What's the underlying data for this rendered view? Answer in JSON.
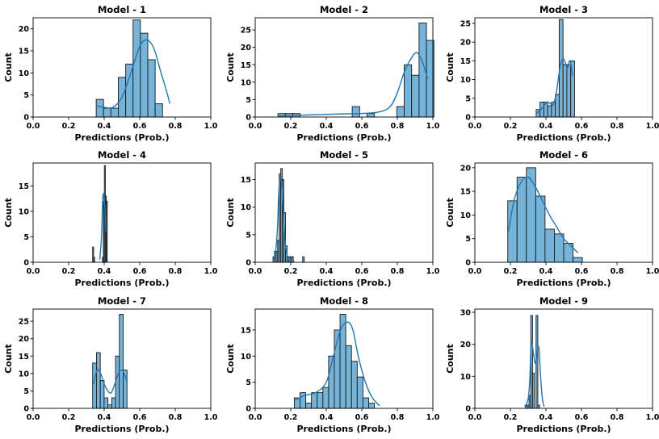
{
  "chart_data": [
    {
      "type": "bar",
      "title": "Model - 1",
      "xlabel": "Predictions (Prob.)",
      "ylabel": "Count",
      "xlim": [
        0,
        1
      ],
      "ylim": [
        0,
        22.5
      ],
      "x_ticks": [
        "0.0",
        "0.2",
        "0.4",
        "0.6",
        "0.8",
        "1.0"
      ],
      "y_ticks": [
        "0",
        "5",
        "10",
        "15",
        "20"
      ],
      "y_tick_values": [
        0,
        5,
        10,
        15,
        20
      ],
      "bin_start": 0.355,
      "bin_width": 0.0415,
      "values": [
        4,
        2,
        2,
        9,
        12,
        22,
        19,
        13,
        3
      ],
      "kde": [
        [
          0.36,
          2.5
        ],
        [
          0.4,
          2.2
        ],
        [
          0.45,
          2.2
        ],
        [
          0.5,
          4.5
        ],
        [
          0.55,
          10
        ],
        [
          0.6,
          16
        ],
        [
          0.64,
          17.5
        ],
        [
          0.68,
          15.5
        ],
        [
          0.72,
          10
        ],
        [
          0.75,
          6
        ],
        [
          0.77,
          3
        ]
      ]
    },
    {
      "type": "bar",
      "title": "Model - 2",
      "xlabel": "Predictions (Prob.)",
      "ylabel": "Count",
      "xlim": [
        0,
        1
      ],
      "ylim": [
        0,
        28.5
      ],
      "x_ticks": [
        "0.0",
        "0.2",
        "0.4",
        "0.6",
        "0.8",
        "1.0"
      ],
      "y_ticks": [
        "0",
        "5",
        "10",
        "15",
        "20",
        "25"
      ],
      "y_tick_values": [
        0,
        5,
        10,
        15,
        20,
        25
      ],
      "bin_start": 0.128,
      "bin_width": 0.0418,
      "values": [
        1,
        1,
        1,
        0,
        0,
        0,
        0,
        0,
        0,
        0,
        3,
        0,
        1,
        0,
        0,
        0,
        3,
        15,
        12,
        27,
        22
      ],
      "kde": [
        [
          0.13,
          0.3
        ],
        [
          0.3,
          0.6
        ],
        [
          0.5,
          0.9
        ],
        [
          0.6,
          1.0
        ],
        [
          0.7,
          1.5
        ],
        [
          0.76,
          3
        ],
        [
          0.8,
          7
        ],
        [
          0.84,
          13
        ],
        [
          0.88,
          17
        ],
        [
          0.91,
          18.5
        ],
        [
          0.94,
          16
        ],
        [
          0.97,
          11
        ]
      ]
    },
    {
      "type": "bar",
      "title": "Model - 3",
      "xlabel": "Predictions (Prob.)",
      "ylabel": "Count",
      "xlim": [
        0,
        1
      ],
      "ylim": [
        0,
        26.5
      ],
      "x_ticks": [
        "0.0",
        "0.2",
        "0.4",
        "0.6",
        "0.8",
        "1.0"
      ],
      "y_ticks": [
        "0",
        "5",
        "10",
        "15",
        "20",
        "25"
      ],
      "y_tick_values": [
        0,
        5,
        10,
        15,
        20,
        25
      ],
      "bin_start": 0.345,
      "bin_width": 0.0216,
      "values": [
        2,
        4,
        4,
        3,
        4,
        6,
        26,
        14,
        14,
        15
      ],
      "kde": [
        [
          0.35,
          1
        ],
        [
          0.38,
          2.5
        ],
        [
          0.41,
          4
        ],
        [
          0.44,
          3.2
        ],
        [
          0.46,
          7
        ],
        [
          0.48,
          13.5
        ],
        [
          0.5,
          15.5
        ],
        [
          0.52,
          13
        ],
        [
          0.535,
          15
        ],
        [
          0.55,
          11
        ]
      ]
    },
    {
      "type": "bar",
      "title": "Model - 4",
      "xlabel": "Predictions (Prob.)",
      "ylabel": "Count",
      "xlim": [
        0,
        1
      ],
      "ylim": [
        0,
        19.5
      ],
      "x_ticks": [
        "0.0",
        "0.2",
        "0.4",
        "0.6",
        "0.8",
        "1.0"
      ],
      "y_ticks": [
        "0",
        "5",
        "10",
        "15"
      ],
      "y_tick_values": [
        0,
        5,
        10,
        15
      ],
      "bin_start": 0.335,
      "bin_width": 0.0055,
      "values": [
        3,
        1,
        0,
        0,
        0,
        0,
        0,
        0,
        0,
        0,
        1,
        12,
        19,
        13,
        12
      ],
      "kde": [
        [
          0.375,
          0.5
        ],
        [
          0.385,
          5
        ],
        [
          0.39,
          11
        ],
        [
          0.395,
          13.5
        ],
        [
          0.4,
          12
        ],
        [
          0.405,
          10
        ],
        [
          0.41,
          6
        ]
      ]
    },
    {
      "type": "bar",
      "title": "Model - 5",
      "xlabel": "Predictions (Prob.)",
      "ylabel": "Count",
      "xlim": [
        0,
        1
      ],
      "ylim": [
        0,
        18
      ],
      "x_ticks": [
        "0.0",
        "0.2",
        "0.4",
        "0.6",
        "0.8",
        "1.0"
      ],
      "y_ticks": [
        "0",
        "5",
        "10",
        "15"
      ],
      "y_tick_values": [
        0,
        5,
        10,
        15
      ],
      "bin_start": 0.1,
      "bin_width": 0.0088,
      "values": [
        1,
        2,
        2,
        4,
        16,
        17,
        15,
        9,
        3,
        1,
        1,
        1,
        1,
        0,
        0,
        0,
        0,
        0,
        0,
        1
      ],
      "kde": [
        [
          0.1,
          0.5
        ],
        [
          0.115,
          2
        ],
        [
          0.125,
          6
        ],
        [
          0.135,
          14
        ],
        [
          0.145,
          15.5
        ],
        [
          0.155,
          11
        ],
        [
          0.165,
          5
        ],
        [
          0.175,
          2
        ],
        [
          0.19,
          0.6
        ],
        [
          0.22,
          0.1
        ]
      ]
    },
    {
      "type": "bar",
      "title": "Model - 6",
      "xlabel": "Predictions (Prob.)",
      "ylabel": "Count",
      "xlim": [
        0,
        1
      ],
      "ylim": [
        0,
        21
      ],
      "x_ticks": [
        "0.0",
        "0.2",
        "0.4",
        "0.6",
        "0.8",
        "1.0"
      ],
      "y_ticks": [
        "0",
        "5",
        "10",
        "15",
        "20"
      ],
      "y_tick_values": [
        0,
        5,
        10,
        15,
        20
      ],
      "bin_start": 0.185,
      "bin_width": 0.0525,
      "values": [
        13,
        18,
        20,
        14,
        7,
        6,
        4,
        1
      ],
      "kde": [
        [
          0.19,
          6.5
        ],
        [
          0.22,
          13
        ],
        [
          0.26,
          17
        ],
        [
          0.3,
          18
        ],
        [
          0.34,
          16
        ],
        [
          0.38,
          13
        ],
        [
          0.42,
          10
        ],
        [
          0.46,
          7.5
        ],
        [
          0.5,
          5
        ],
        [
          0.54,
          3.5
        ],
        [
          0.58,
          2
        ]
      ]
    },
    {
      "type": "bar",
      "title": "Model - 7",
      "xlabel": "Predictions (Prob.)",
      "ylabel": "Count",
      "xlim": [
        0,
        1
      ],
      "ylim": [
        0,
        28.5
      ],
      "x_ticks": [
        "0.0",
        "0.2",
        "0.4",
        "0.6",
        "0.8",
        "1.0"
      ],
      "y_ticks": [
        "0",
        "5",
        "10",
        "15",
        "20",
        "25"
      ],
      "y_tick_values": [
        0,
        5,
        10,
        15,
        20,
        25
      ],
      "bin_start": 0.335,
      "bin_width": 0.0215,
      "values": [
        13,
        16,
        8,
        3,
        1,
        3,
        15,
        27,
        11
      ],
      "kde": [
        [
          0.34,
          7
        ],
        [
          0.36,
          11
        ],
        [
          0.38,
          10
        ],
        [
          0.4,
          7
        ],
        [
          0.42,
          5
        ],
        [
          0.44,
          4.5
        ],
        [
          0.46,
          7
        ],
        [
          0.48,
          10
        ],
        [
          0.5,
          11
        ],
        [
          0.52,
          9
        ],
        [
          0.53,
          7
        ]
      ]
    },
    {
      "type": "bar",
      "title": "Model - 8",
      "xlabel": "Predictions (Prob.)",
      "ylabel": "Count",
      "xlim": [
        0,
        1
      ],
      "ylim": [
        0,
        19
      ],
      "x_ticks": [
        "0.0",
        "0.2",
        "0.4",
        "0.6",
        "0.8",
        "1.0"
      ],
      "y_ticks": [
        "0",
        "5",
        "10",
        "15"
      ],
      "y_tick_values": [
        0,
        5,
        10,
        15
      ],
      "bin_start": 0.22,
      "bin_width": 0.0322,
      "values": [
        2,
        3,
        1,
        3,
        3,
        4,
        10,
        15,
        18,
        12,
        9,
        6,
        2,
        1
      ],
      "kde": [
        [
          0.22,
          1.5
        ],
        [
          0.28,
          2.5
        ],
        [
          0.34,
          3
        ],
        [
          0.4,
          5
        ],
        [
          0.44,
          10
        ],
        [
          0.48,
          15
        ],
        [
          0.52,
          16.5
        ],
        [
          0.55,
          15
        ],
        [
          0.58,
          10
        ],
        [
          0.62,
          5
        ],
        [
          0.66,
          2
        ],
        [
          0.7,
          0.5
        ]
      ]
    },
    {
      "type": "bar",
      "title": "Model - 9",
      "xlabel": "Predictions (Prob.)",
      "ylabel": "Count",
      "xlim": [
        0,
        1
      ],
      "ylim": [
        0,
        31
      ],
      "x_ticks": [
        "0.0",
        "0.2",
        "0.4",
        "0.6",
        "0.8",
        "1.0"
      ],
      "y_ticks": [
        "0",
        "10",
        "20",
        "30"
      ],
      "y_tick_values": [
        0,
        10,
        20,
        30
      ],
      "bin_start": 0.285,
      "bin_width": 0.0099,
      "values": [
        1,
        1,
        4,
        29,
        11,
        0,
        29,
        1
      ],
      "kde": [
        [
          0.28,
          0.5
        ],
        [
          0.3,
          3
        ],
        [
          0.31,
          10
        ],
        [
          0.315,
          19
        ],
        [
          0.32,
          21
        ],
        [
          0.33,
          17
        ],
        [
          0.34,
          14
        ],
        [
          0.35,
          17
        ],
        [
          0.36,
          19
        ],
        [
          0.37,
          10
        ],
        [
          0.38,
          3
        ],
        [
          0.39,
          0.5
        ]
      ]
    }
  ]
}
